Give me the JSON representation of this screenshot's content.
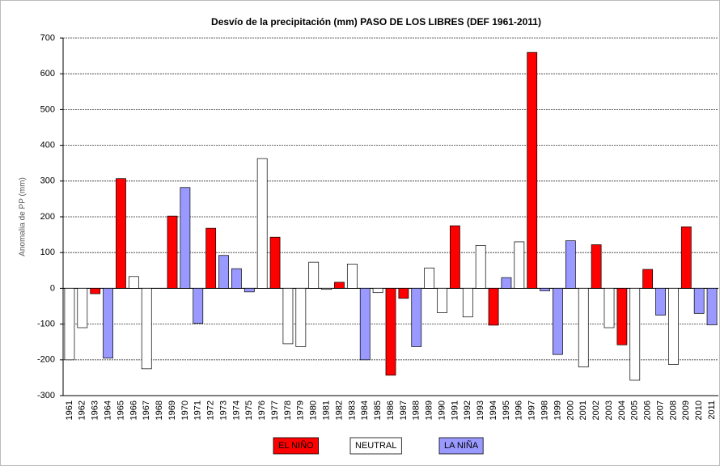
{
  "chart_data": {
    "type": "bar",
    "title": "Desvío de la precipitación (mm) PASO DE LOS LIBRES (DEF 1961-2011)",
    "y_label": "Anomalia de PP (mm)",
    "categories": [
      "1961",
      "1962",
      "1963",
      "1964",
      "1965",
      "1966",
      "1967",
      "1968",
      "1969",
      "1970",
      "1971",
      "1972",
      "1973",
      "1974",
      "1975",
      "1976",
      "1977",
      "1978",
      "1979",
      "1980",
      "1981",
      "1982",
      "1983",
      "1984",
      "1985",
      "1986",
      "1987",
      "1988",
      "1989",
      "1990",
      "1991",
      "1992",
      "1993",
      "1994",
      "1995",
      "1996",
      "1997",
      "1998",
      "1999",
      "2000",
      "2001",
      "2002",
      "2003",
      "2004",
      "2005",
      "2006",
      "2007",
      "2008",
      "2009",
      "2010",
      "2011"
    ],
    "series": [
      {
        "name": "EL NIÑO",
        "color": "#ff0000",
        "values": [
          null,
          null,
          -15,
          null,
          307,
          null,
          null,
          null,
          202,
          null,
          null,
          168,
          null,
          null,
          null,
          null,
          143,
          null,
          null,
          null,
          null,
          17,
          null,
          null,
          null,
          -243,
          -28,
          null,
          null,
          null,
          175,
          null,
          null,
          -103,
          null,
          null,
          660,
          null,
          null,
          null,
          null,
          122,
          null,
          -158,
          null,
          53,
          null,
          null,
          172,
          null,
          null
        ]
      },
      {
        "name": "NEUTRAL",
        "color": "#ffffff",
        "values": [
          -200,
          -110,
          null,
          null,
          null,
          33,
          -225,
          0,
          null,
          null,
          null,
          null,
          null,
          null,
          null,
          363,
          null,
          -155,
          -163,
          73,
          -3,
          null,
          68,
          null,
          -12,
          null,
          null,
          null,
          57,
          -68,
          null,
          -80,
          120,
          null,
          null,
          130,
          null,
          null,
          null,
          null,
          -220,
          null,
          -110,
          null,
          -257,
          null,
          null,
          -213,
          null,
          null,
          null
        ]
      },
      {
        "name": "LA NIÑA",
        "color": "#9999ff",
        "values": [
          null,
          null,
          null,
          -195,
          null,
          null,
          null,
          null,
          null,
          282,
          -98,
          null,
          92,
          55,
          -10,
          null,
          null,
          null,
          null,
          null,
          null,
          null,
          null,
          -200,
          null,
          null,
          null,
          -163,
          null,
          null,
          null,
          null,
          null,
          null,
          30,
          null,
          null,
          -7,
          -185,
          133,
          null,
          null,
          null,
          null,
          null,
          null,
          -75,
          null,
          null,
          -70,
          -102
        ]
      }
    ],
    "ylim": [
      -300,
      700
    ],
    "yticks": [
      -300,
      -200,
      -100,
      0,
      100,
      200,
      300,
      400,
      500,
      600,
      700
    ],
    "grid": true
  }
}
